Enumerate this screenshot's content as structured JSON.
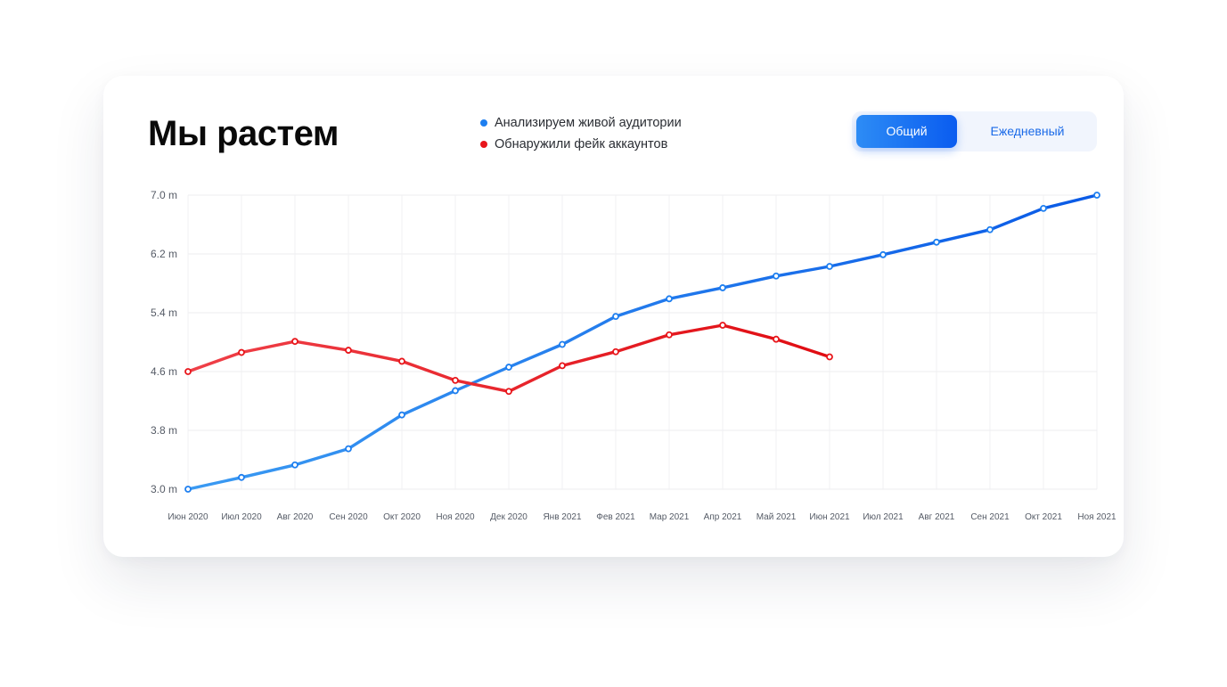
{
  "header": {
    "title": "Мы растем"
  },
  "legend": {
    "items": [
      {
        "label": "Анализируем живой аудитории",
        "color": "#1e7ff0"
      },
      {
        "label": "Обнаружили фейк аккаунтов",
        "color": "#e8161b"
      }
    ]
  },
  "toggle": {
    "options": [
      "Общий",
      "Ежедневный"
    ],
    "selected": "Общий"
  },
  "colors": {
    "live_start": "#3a9af2",
    "live_end": "#0a5ae6",
    "fake_start": "#ef4048",
    "fake_end": "#e00c12"
  },
  "chart_data": {
    "type": "line",
    "categories": [
      "Июн 2020",
      "Июл 2020",
      "Авг 2020",
      "Сен 2020",
      "Окт 2020",
      "Ноя 2020",
      "Дек 2020",
      "Янв 2021",
      "Фев 2021",
      "Мар 2021",
      "Апр 2021",
      "Май 2021",
      "Июн 2021",
      "Июл 2021",
      "Авг 2021",
      "Сен 2021",
      "Окт 2021",
      "Ноя 2021"
    ],
    "y_ticks": [
      "7.0 m",
      "6.2 m",
      "5.4 m",
      "4.6 m",
      "3.8 m",
      "3.0 m"
    ],
    "ylim": [
      3.0,
      7.0
    ],
    "grid": true,
    "legend_position": "top",
    "series": [
      {
        "name": "Анализируем живой аудитории",
        "values": [
          3.0,
          3.16,
          3.33,
          3.55,
          4.01,
          4.34,
          4.66,
          4.97,
          5.35,
          5.59,
          5.74,
          5.9,
          6.03,
          6.19,
          6.36,
          6.53,
          6.82,
          7.0
        ]
      },
      {
        "name": "Обнаружили фейк аккаунтов",
        "values": [
          4.6,
          4.86,
          5.01,
          4.89,
          4.74,
          4.48,
          4.33,
          4.68,
          4.87,
          5.1,
          5.23,
          5.04,
          4.8,
          null,
          null,
          null,
          null,
          null
        ]
      }
    ]
  }
}
